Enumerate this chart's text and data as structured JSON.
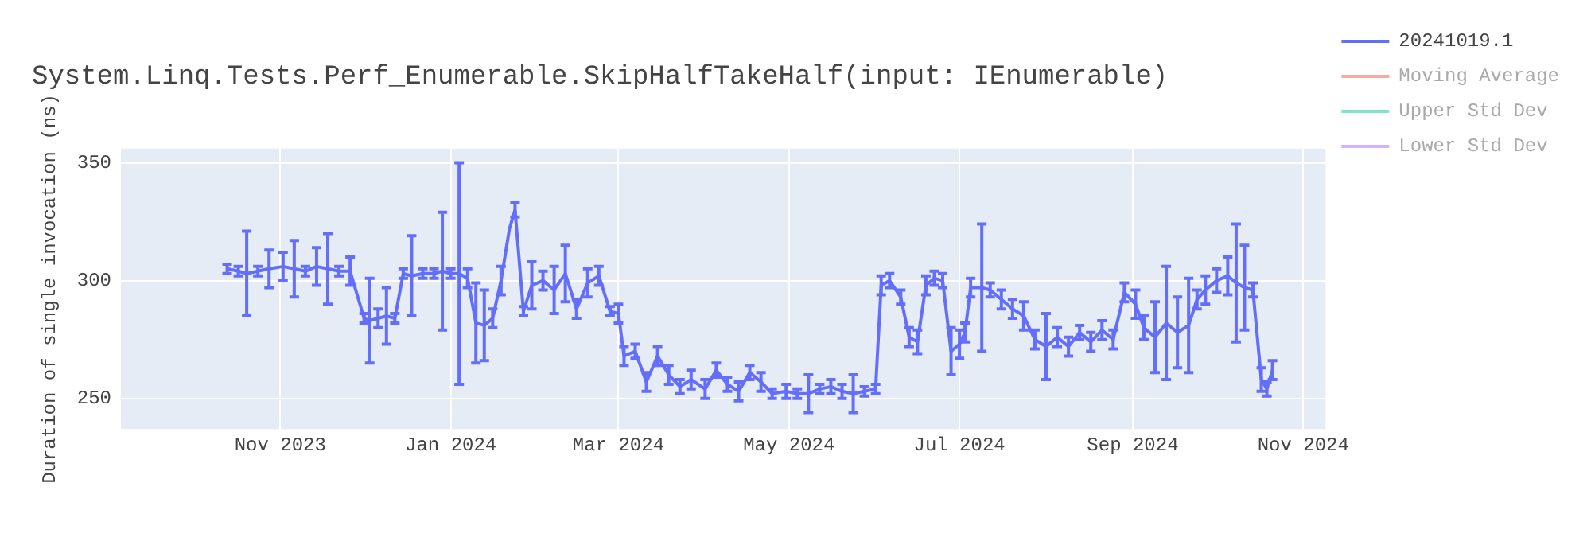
{
  "chart_data": {
    "type": "line",
    "title": "System.Linq.Tests.Perf_Enumerable.SkipHalfTakeHalf(input: IEnumerable)",
    "ylabel": "Duration of single invocation (ns)",
    "x": [
      "2023-10-13",
      "2023-10-17",
      "2023-10-20",
      "2023-10-24",
      "2023-10-28",
      "2023-11-02",
      "2023-11-06",
      "2023-11-10",
      "2023-11-14",
      "2023-11-18",
      "2023-11-22",
      "2023-11-26",
      "2023-12-01",
      "2023-12-03",
      "2023-12-06",
      "2023-12-09",
      "2023-12-12",
      "2023-12-15",
      "2023-12-18",
      "2023-12-22",
      "2023-12-26",
      "2023-12-29",
      "2024-01-01",
      "2024-01-04",
      "2024-01-07",
      "2024-01-10",
      "2024-01-13",
      "2024-01-16",
      "2024-01-19",
      "2024-01-22",
      "2024-01-24",
      "2024-01-27",
      "2024-01-30",
      "2024-02-03",
      "2024-02-07",
      "2024-02-11",
      "2024-02-15",
      "2024-02-19",
      "2024-02-23",
      "2024-02-27",
      "2024-03-01",
      "2024-03-03",
      "2024-03-07",
      "2024-03-11",
      "2024-03-15",
      "2024-03-19",
      "2024-03-23",
      "2024-03-27",
      "2024-04-01",
      "2024-04-05",
      "2024-04-09",
      "2024-04-13",
      "2024-04-17",
      "2024-04-21",
      "2024-04-25",
      "2024-04-30",
      "2024-05-04",
      "2024-05-08",
      "2024-05-12",
      "2024-05-16",
      "2024-05-20",
      "2024-05-24",
      "2024-05-28",
      "2024-06-01",
      "2024-06-03",
      "2024-06-06",
      "2024-06-10",
      "2024-06-13",
      "2024-06-16",
      "2024-06-19",
      "2024-06-22",
      "2024-06-25",
      "2024-06-28",
      "2024-07-01",
      "2024-07-03",
      "2024-07-05",
      "2024-07-09",
      "2024-07-12",
      "2024-07-16",
      "2024-07-20",
      "2024-07-24",
      "2024-07-28",
      "2024-08-01",
      "2024-08-05",
      "2024-08-09",
      "2024-08-13",
      "2024-08-17",
      "2024-08-21",
      "2024-08-25",
      "2024-08-29",
      "2024-09-02",
      "2024-09-05",
      "2024-09-09",
      "2024-09-13",
      "2024-09-17",
      "2024-09-21",
      "2024-09-24",
      "2024-09-27",
      "2024-10-01",
      "2024-10-05",
      "2024-10-08",
      "2024-10-11",
      "2024-10-14",
      "2024-10-17",
      "2024-10-19",
      "2024-10-21"
    ],
    "series": [
      {
        "name": "20241019.1",
        "color": "#636efa",
        "values": [
          305,
          304,
          303,
          304,
          305,
          306,
          305,
          304,
          306,
          305,
          304,
          304,
          284,
          283,
          284,
          285,
          284,
          303,
          302,
          303,
          303,
          304,
          303,
          303,
          301,
          282,
          281,
          284,
          300,
          322,
          330,
          287,
          298,
          300,
          296,
          303,
          288,
          299,
          302,
          287,
          286,
          268,
          270,
          257,
          268,
          260,
          255,
          258,
          254,
          262,
          256,
          253,
          261,
          257,
          252,
          253,
          252,
          252,
          254,
          255,
          253,
          252,
          253,
          254,
          298,
          300,
          293,
          276,
          274,
          298,
          301,
          300,
          270,
          273,
          278,
          297,
          297,
          296,
          292,
          288,
          285,
          275,
          272,
          276,
          272,
          278,
          274,
          279,
          275,
          295,
          290,
          280,
          276,
          282,
          278,
          281,
          292,
          296,
          300,
          302,
          299,
          297,
          296,
          258,
          254,
          262
        ],
        "errors": [
          2,
          2,
          18,
          2,
          8,
          6,
          12,
          2,
          8,
          15,
          2,
          6,
          2,
          18,
          4,
          12,
          2,
          2,
          17,
          2,
          2,
          25,
          2,
          47,
          4,
          17,
          15,
          4,
          6,
          null,
          3,
          2,
          10,
          4,
          10,
          12,
          4,
          6,
          4,
          2,
          4,
          4,
          3,
          4,
          4,
          4,
          3,
          4,
          4,
          3,
          3,
          4,
          3,
          4,
          2,
          3,
          2,
          8,
          2,
          3,
          3,
          8,
          2,
          2,
          4,
          3,
          3,
          4,
          5,
          4,
          3,
          3,
          10,
          6,
          4,
          4,
          27,
          3,
          4,
          4,
          6,
          4,
          14,
          4,
          4,
          3,
          4,
          4,
          4,
          4,
          6,
          5,
          15,
          24,
          15,
          20,
          4,
          6,
          5,
          8,
          25,
          18,
          3,
          5,
          3,
          4
        ]
      },
      {
        "name": "Moving Average",
        "color": "#ef553b",
        "values": [
          null,
          null,
          null,
          null,
          null,
          null,
          null,
          null,
          null,
          null,
          null,
          null,
          null,
          null,
          null,
          null,
          null,
          null,
          null,
          null,
          null,
          null,
          null,
          null,
          null,
          null,
          null,
          null,
          null,
          null,
          null,
          null,
          null,
          null,
          null,
          null,
          null,
          null,
          null,
          null,
          null,
          null,
          null,
          null,
          null,
          null,
          null,
          null,
          null,
          null,
          null,
          null,
          null,
          null,
          null,
          null,
          null,
          null,
          null,
          null,
          null,
          null,
          null,
          null,
          null,
          null,
          null,
          null,
          null,
          null,
          null,
          null,
          null,
          null,
          null,
          null,
          null,
          null,
          null,
          null,
          null,
          null,
          null,
          null,
          null,
          null,
          null,
          null,
          null,
          null,
          null,
          null,
          null,
          null,
          null,
          null,
          null,
          null,
          null,
          null,
          null,
          null,
          null,
          null,
          null,
          null
        ]
      },
      {
        "name": "Upper Std Dev",
        "color": "#00cc96",
        "values": [
          null,
          null,
          null,
          null,
          null,
          null,
          null,
          null,
          null,
          null,
          null,
          null,
          null,
          null,
          null,
          null,
          null,
          null,
          null,
          null,
          null,
          null,
          null,
          null,
          null,
          null,
          null,
          null,
          null,
          null,
          null,
          null,
          null,
          null,
          null,
          null,
          null,
          null,
          null,
          null,
          null,
          null,
          null,
          null,
          null,
          null,
          null,
          null,
          null,
          null,
          null,
          null,
          null,
          null,
          null,
          null,
          null,
          null,
          null,
          null,
          null,
          null,
          null,
          null,
          null,
          null,
          null,
          null,
          null,
          null,
          null,
          null,
          null,
          null,
          null,
          null,
          null,
          null,
          null,
          null,
          null,
          null,
          null,
          null,
          null,
          null,
          null,
          null,
          null,
          null,
          null,
          null,
          null,
          null,
          null,
          null,
          null,
          null,
          null,
          null,
          null,
          null,
          null,
          null,
          null,
          null
        ]
      },
      {
        "name": "Lower Std Dev",
        "color": "#ab63fa",
        "values": [
          null,
          null,
          null,
          null,
          null,
          null,
          null,
          null,
          null,
          null,
          null,
          null,
          null,
          null,
          null,
          null,
          null,
          null,
          null,
          null,
          null,
          null,
          null,
          null,
          null,
          null,
          null,
          null,
          null,
          null,
          null,
          null,
          null,
          null,
          null,
          null,
          null,
          null,
          null,
          null,
          null,
          null,
          null,
          null,
          null,
          null,
          null,
          null,
          null,
          null,
          null,
          null,
          null,
          null,
          null,
          null,
          null,
          null,
          null,
          null,
          null,
          null,
          null,
          null,
          null,
          null,
          null,
          null,
          null,
          null,
          null,
          null,
          null,
          null,
          null,
          null,
          null,
          null,
          null,
          null,
          null,
          null,
          null,
          null,
          null,
          null,
          null,
          null,
          null,
          null,
          null,
          null,
          null,
          null,
          null,
          null,
          null,
          null,
          null,
          null,
          null,
          null,
          null,
          null,
          null,
          null
        ]
      }
    ],
    "xlim": [
      "2023-09-05",
      "2024-11-09"
    ],
    "xticks": [
      {
        "value": "2023-11-01",
        "label": "Nov 2023"
      },
      {
        "value": "2024-01-01",
        "label": "Jan 2024"
      },
      {
        "value": "2024-03-01",
        "label": "Mar 2024"
      },
      {
        "value": "2024-05-01",
        "label": "May 2024"
      },
      {
        "value": "2024-07-01",
        "label": "Jul 2024"
      },
      {
        "value": "2024-09-01",
        "label": "Sep 2024"
      },
      {
        "value": "2024-11-01",
        "label": "Nov 2024"
      }
    ],
    "ylim": [
      237,
      356
    ],
    "yticks": [
      250,
      300,
      350
    ],
    "grid": true,
    "legend": "right",
    "marker": "none",
    "line_style": "solid"
  }
}
